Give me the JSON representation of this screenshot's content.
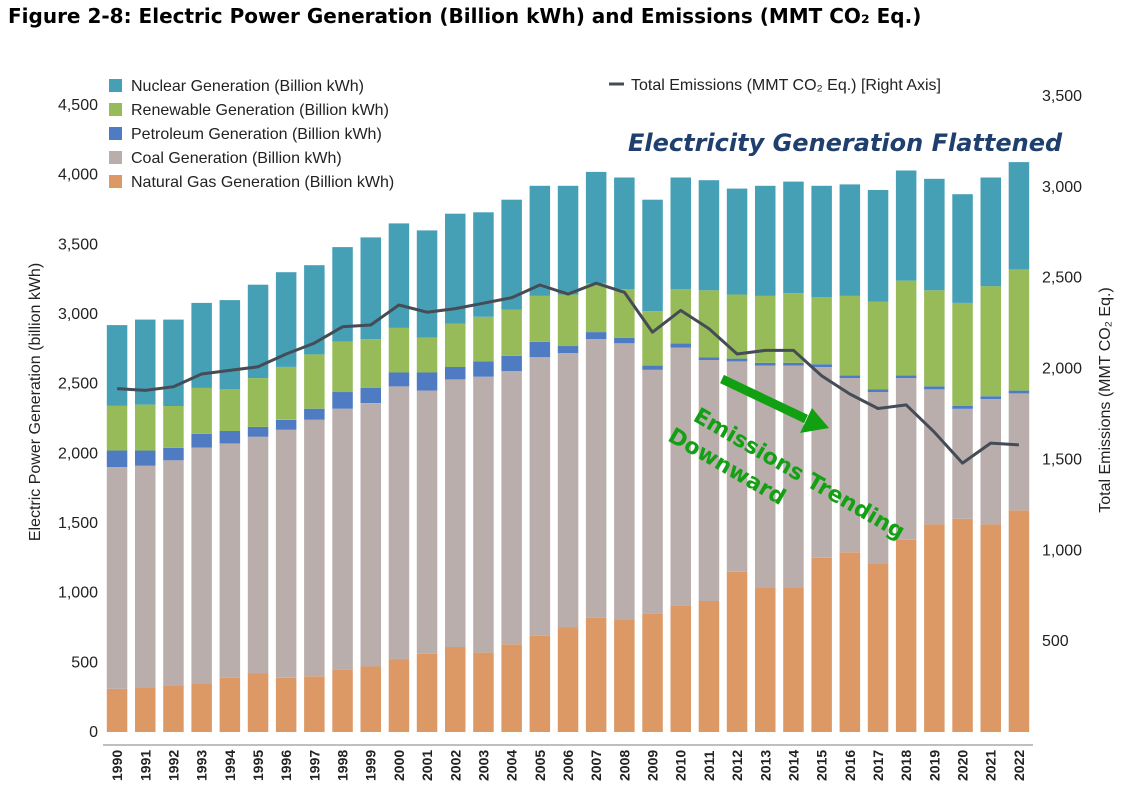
{
  "figure_title": "Figure 2-8:  Electric Power Generation (Billion kWh) and Emissions (MMT CO₂ Eq.)",
  "chart_data": {
    "type": "bar",
    "stacked": true,
    "categories": [
      "1990",
      "1991",
      "1992",
      "1993",
      "1994",
      "1995",
      "1996",
      "1997",
      "1998",
      "1999",
      "2000",
      "2001",
      "2002",
      "2003",
      "2004",
      "2005",
      "2006",
      "2007",
      "2008",
      "2009",
      "2010",
      "2011",
      "2012",
      "2013",
      "2014",
      "2015",
      "2016",
      "2017",
      "2018",
      "2019",
      "2020",
      "2021",
      "2022"
    ],
    "series": [
      {
        "name": "Natural Gas Generation (Billion kWh)",
        "color": "#dd9965",
        "values": [
          310,
          320,
          330,
          350,
          390,
          420,
          390,
          400,
          450,
          470,
          520,
          560,
          610,
          570,
          630,
          690,
          750,
          820,
          810,
          850,
          910,
          940,
          1150,
          1040,
          1040,
          1250,
          1290,
          1210,
          1380,
          1490,
          1530,
          1490,
          1590
        ]
      },
      {
        "name": "Coal Generation (Billion kWh)",
        "color": "#b9aeac",
        "values": [
          1590,
          1590,
          1620,
          1690,
          1680,
          1700,
          1780,
          1840,
          1870,
          1890,
          1960,
          1890,
          1920,
          1980,
          1960,
          2000,
          1970,
          2000,
          1980,
          1750,
          1850,
          1730,
          1510,
          1590,
          1590,
          1370,
          1250,
          1230,
          1160,
          970,
          790,
          900,
          840
        ]
      },
      {
        "name": "Petroleum Generation (Billion kWh)",
        "color": "#4e7bc2",
        "values": [
          120,
          110,
          90,
          100,
          90,
          70,
          70,
          80,
          120,
          110,
          100,
          130,
          90,
          110,
          110,
          110,
          50,
          50,
          40,
          30,
          30,
          20,
          20,
          20,
          20,
          20,
          20,
          20,
          20,
          20,
          20,
          20,
          20
        ]
      },
      {
        "name": "Renewable Generation (Billion kWh)",
        "color": "#98bb59",
        "values": [
          320,
          330,
          300,
          330,
          300,
          350,
          380,
          390,
          360,
          350,
          320,
          250,
          310,
          320,
          330,
          330,
          370,
          350,
          350,
          390,
          390,
          480,
          460,
          480,
          500,
          480,
          570,
          630,
          680,
          690,
          740,
          790,
          870
        ]
      },
      {
        "name": "Nuclear Generation (Billion kWh)",
        "color": "#45a0b6",
        "values": [
          580,
          610,
          620,
          610,
          640,
          670,
          680,
          640,
          680,
          730,
          750,
          770,
          790,
          750,
          790,
          790,
          780,
          800,
          800,
          800,
          800,
          790,
          760,
          790,
          800,
          800,
          800,
          800,
          790,
          800,
          780,
          780,
          770
        ]
      }
    ],
    "emissions": {
      "name": "Total Emissions (MMT CO₂ Eq.) [Right Axis]",
      "color": "#454c56",
      "axis": "right",
      "values": [
        1890,
        1880,
        1900,
        1970,
        1990,
        2010,
        2080,
        2140,
        2230,
        2240,
        2350,
        2310,
        2330,
        2360,
        2390,
        2460,
        2410,
        2470,
        2420,
        2200,
        2320,
        2220,
        2080,
        2100,
        2100,
        1960,
        1860,
        1780,
        1800,
        1650,
        1480,
        1590,
        1580
      ]
    },
    "ylabel": "Electric Power Generation (billion kWh)",
    "ylabel_right": "Total Emissions (MMT CO₂ Eq.)",
    "ylim": [
      0,
      4500
    ],
    "ylim_right": [
      0,
      3500
    ],
    "yticks": [
      0,
      500,
      1000,
      1500,
      2000,
      2500,
      3000,
      3500,
      4000,
      4500
    ],
    "yticks_right": [
      500,
      1000,
      1500,
      2000,
      2500,
      3000,
      3500
    ],
    "legend_position": "top-left",
    "annotations": [
      {
        "text": "Electricity Generation Flattened",
        "color": "#1f3f6e"
      },
      {
        "text": "Emissions Trending Downward",
        "line1": "Emissions Trending",
        "line2": "Downward",
        "color": "#14a014"
      }
    ]
  }
}
